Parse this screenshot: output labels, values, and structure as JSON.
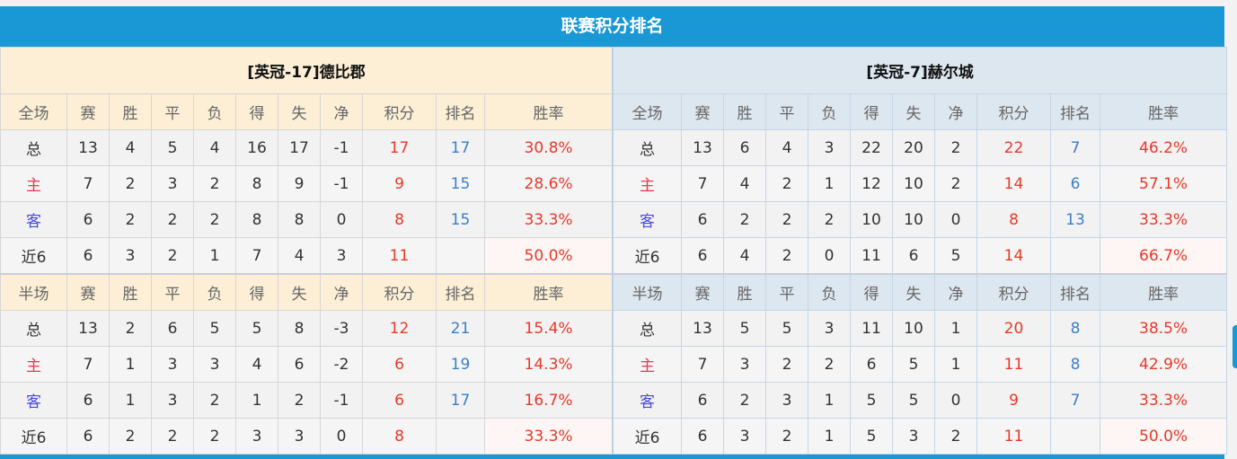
{
  "title": "联赛积分排名",
  "colors": {
    "accent": "#1a97d5",
    "points": "#e8382a",
    "rank": "#3a7fc8"
  },
  "teams": [
    {
      "name": "[英冠-17]德比郡",
      "full": {
        "label": "全场",
        "rows": [
          [
            "总",
            "13",
            "4",
            "5",
            "4",
            "16",
            "17",
            "-1",
            "17",
            "17",
            "30.8%"
          ],
          [
            "主",
            "7",
            "2",
            "3",
            "2",
            "8",
            "9",
            "-1",
            "9",
            "15",
            "28.6%"
          ],
          [
            "客",
            "6",
            "2",
            "2",
            "2",
            "8",
            "8",
            "0",
            "8",
            "15",
            "33.3%"
          ],
          [
            "近6",
            "6",
            "3",
            "2",
            "1",
            "7",
            "4",
            "3",
            "11",
            "",
            "50.0%"
          ]
        ]
      },
      "half": {
        "label": "半场",
        "rows": [
          [
            "总",
            "13",
            "2",
            "6",
            "5",
            "5",
            "8",
            "-3",
            "12",
            "21",
            "15.4%"
          ],
          [
            "主",
            "7",
            "1",
            "3",
            "3",
            "4",
            "6",
            "-2",
            "6",
            "19",
            "14.3%"
          ],
          [
            "客",
            "6",
            "1",
            "3",
            "2",
            "1",
            "2",
            "-1",
            "6",
            "17",
            "16.7%"
          ],
          [
            "近6",
            "6",
            "2",
            "2",
            "2",
            "3",
            "3",
            "0",
            "8",
            "",
            "33.3%"
          ]
        ]
      }
    },
    {
      "name": "[英冠-7]赫尔城",
      "full": {
        "label": "全场",
        "rows": [
          [
            "总",
            "13",
            "6",
            "4",
            "3",
            "22",
            "20",
            "2",
            "22",
            "7",
            "46.2%"
          ],
          [
            "主",
            "7",
            "4",
            "2",
            "1",
            "12",
            "10",
            "2",
            "14",
            "6",
            "57.1%"
          ],
          [
            "客",
            "6",
            "2",
            "2",
            "2",
            "10",
            "10",
            "0",
            "8",
            "13",
            "33.3%"
          ],
          [
            "近6",
            "6",
            "4",
            "2",
            "0",
            "11",
            "6",
            "5",
            "14",
            "",
            "66.7%"
          ]
        ]
      },
      "half": {
        "label": "半场",
        "rows": [
          [
            "总",
            "13",
            "5",
            "5",
            "3",
            "11",
            "10",
            "1",
            "20",
            "8",
            "38.5%"
          ],
          [
            "主",
            "7",
            "3",
            "2",
            "2",
            "6",
            "5",
            "1",
            "11",
            "8",
            "42.9%"
          ],
          [
            "客",
            "6",
            "2",
            "3",
            "1",
            "5",
            "5",
            "0",
            "9",
            "7",
            "33.3%"
          ],
          [
            "近6",
            "6",
            "3",
            "2",
            "1",
            "5",
            "3",
            "2",
            "11",
            "",
            "50.0%"
          ]
        ]
      }
    }
  ],
  "columns": [
    "赛",
    "胜",
    "平",
    "负",
    "得",
    "失",
    "净",
    "积分",
    "排名",
    "胜率"
  ]
}
